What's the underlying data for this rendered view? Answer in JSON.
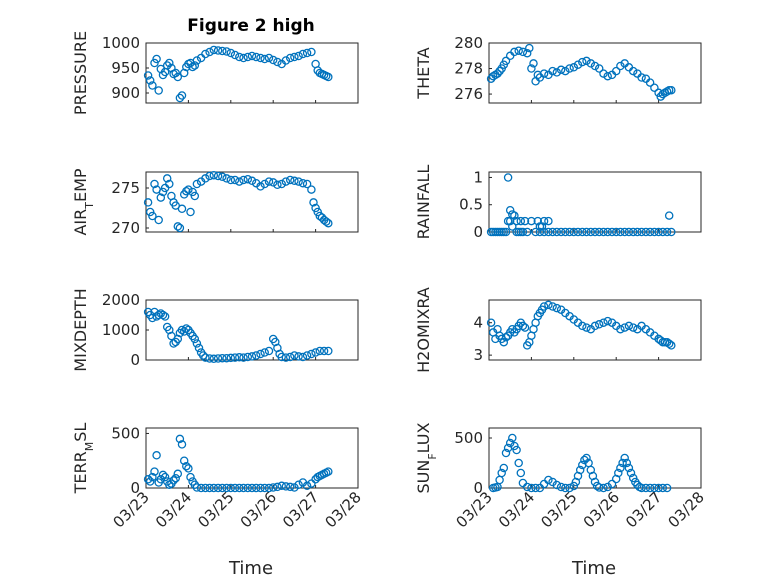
{
  "figure": {
    "title": "Figure 2 high",
    "xlabel": "Time",
    "colors": {
      "series": "#0072BD",
      "axis": "#262626",
      "grid": "#dfdfdf"
    }
  },
  "chart_data": [
    {
      "type": "scatter",
      "ylabel": "PRESSURE",
      "xlim": [
        "03/23",
        "03/28"
      ],
      "ylim": [
        880,
        1000
      ],
      "yticks": [
        900,
        950,
        1000
      ],
      "xticks": [
        "03/23",
        "03/24",
        "03/25",
        "03/26",
        "03/27",
        "03/28"
      ],
      "grid": true,
      "x": [
        0.05,
        0.1,
        0.15,
        0.2,
        0.25,
        0.3,
        0.35,
        0.4,
        0.45,
        0.5,
        0.55,
        0.6,
        0.65,
        0.7,
        0.75,
        0.8,
        0.85,
        0.9,
        0.95,
        1.0,
        1.05,
        1.1,
        1.15,
        1.2,
        1.3,
        1.4,
        1.5,
        1.6,
        1.7,
        1.8,
        1.9,
        2.0,
        2.1,
        2.2,
        2.3,
        2.4,
        2.5,
        2.6,
        2.7,
        2.8,
        2.9,
        3.0,
        3.1,
        3.2,
        3.3,
        3.4,
        3.5,
        3.6,
        3.7,
        3.8,
        3.9,
        4.0,
        4.05,
        4.1,
        4.15,
        4.2,
        4.25,
        4.3
      ],
      "y": [
        935,
        925,
        915,
        960,
        968,
        905,
        948,
        936,
        942,
        955,
        960,
        950,
        938,
        940,
        932,
        890,
        895,
        940,
        952,
        958,
        960,
        952,
        955,
        965,
        970,
        978,
        982,
        986,
        985,
        984,
        983,
        980,
        976,
        972,
        970,
        972,
        974,
        972,
        970,
        968,
        970,
        966,
        962,
        958,
        965,
        970,
        972,
        974,
        978,
        980,
        982,
        958,
        945,
        940,
        938,
        936,
        934,
        932
      ],
      "series_name": ""
    },
    {
      "type": "scatter",
      "ylabel": "THETA",
      "xlim": [
        "03/23",
        "03/28"
      ],
      "ylim": [
        275.3,
        280
      ],
      "yticks": [
        276,
        278,
        280
      ],
      "xticks": [
        "03/23",
        "03/24",
        "03/25",
        "03/26",
        "03/27",
        "03/28"
      ],
      "grid": true,
      "x": [
        0.05,
        0.1,
        0.15,
        0.2,
        0.25,
        0.3,
        0.35,
        0.4,
        0.5,
        0.6,
        0.7,
        0.8,
        0.9,
        0.95,
        1.0,
        1.05,
        1.1,
        1.15,
        1.2,
        1.3,
        1.4,
        1.5,
        1.6,
        1.7,
        1.8,
        1.9,
        2.0,
        2.1,
        2.2,
        2.3,
        2.4,
        2.5,
        2.6,
        2.7,
        2.8,
        2.9,
        3.0,
        3.1,
        3.2,
        3.3,
        3.4,
        3.5,
        3.6,
        3.7,
        3.8,
        3.9,
        4.0,
        4.05,
        4.1,
        4.15,
        4.2,
        4.25,
        4.3
      ],
      "y": [
        277.2,
        277.4,
        277.5,
        277.6,
        277.8,
        278.0,
        278.3,
        278.6,
        279.0,
        279.3,
        279.4,
        279.3,
        279.2,
        279.6,
        278.0,
        278.4,
        277.0,
        277.5,
        277.3,
        277.6,
        277.5,
        277.8,
        277.7,
        277.9,
        277.8,
        278.0,
        278.1,
        278.3,
        278.5,
        278.6,
        278.4,
        278.2,
        278.0,
        277.6,
        277.4,
        277.5,
        277.8,
        278.2,
        278.4,
        278.1,
        277.8,
        277.6,
        277.3,
        277.2,
        276.9,
        276.5,
        276.1,
        275.8,
        276.0,
        276.1,
        276.2,
        276.3,
        276.3
      ],
      "series_name": ""
    },
    {
      "type": "scatter",
      "ylabel": "AIR_TEMP",
      "xlim": [
        "03/23",
        "03/28"
      ],
      "ylim": [
        269.5,
        277
      ],
      "yticks": [
        270,
        275
      ],
      "xticks": [
        "03/23",
        "03/24",
        "03/25",
        "03/26",
        "03/27",
        "03/28"
      ],
      "grid": true,
      "x": [
        0.05,
        0.1,
        0.15,
        0.2,
        0.25,
        0.3,
        0.35,
        0.4,
        0.45,
        0.5,
        0.55,
        0.6,
        0.65,
        0.7,
        0.75,
        0.8,
        0.85,
        0.9,
        0.95,
        1.0,
        1.05,
        1.1,
        1.15,
        1.2,
        1.3,
        1.4,
        1.5,
        1.6,
        1.7,
        1.8,
        1.9,
        2.0,
        2.1,
        2.2,
        2.3,
        2.4,
        2.5,
        2.6,
        2.7,
        2.8,
        2.9,
        3.0,
        3.1,
        3.2,
        3.3,
        3.4,
        3.5,
        3.6,
        3.7,
        3.8,
        3.9,
        3.95,
        4.0,
        4.05,
        4.1,
        4.15,
        4.2,
        4.25,
        4.3
      ],
      "y": [
        273.2,
        272.0,
        271.5,
        275.5,
        274.8,
        271.0,
        273.8,
        274.5,
        275.0,
        276.2,
        275.5,
        274.0,
        273.2,
        272.8,
        270.2,
        270.0,
        272.4,
        274.2,
        274.6,
        274.8,
        272.0,
        274.5,
        274.0,
        275.5,
        275.8,
        276.2,
        276.5,
        276.6,
        276.5,
        276.4,
        276.2,
        276.0,
        276.0,
        275.8,
        276.0,
        276.1,
        275.9,
        275.6,
        275.2,
        275.5,
        275.8,
        275.7,
        275.4,
        275.5,
        275.8,
        276.0,
        275.9,
        275.8,
        275.6,
        275.5,
        274.8,
        273.2,
        272.5,
        272.0,
        271.5,
        271.3,
        271.0,
        270.8,
        270.6
      ],
      "series_name": ""
    },
    {
      "type": "scatter",
      "ylabel": "RAINFALL",
      "xlim": [
        "03/23",
        "03/28"
      ],
      "ylim": [
        0,
        1.1
      ],
      "yticks": [
        0,
        0.5,
        1
      ],
      "xticks": [
        "03/23",
        "03/24",
        "03/25",
        "03/26",
        "03/27",
        "03/28"
      ],
      "grid": true,
      "x": [
        0.05,
        0.1,
        0.15,
        0.2,
        0.25,
        0.3,
        0.35,
        0.4,
        0.45,
        0.5,
        0.55,
        0.6,
        0.65,
        0.7,
        0.75,
        0.8,
        0.9,
        1.0,
        1.1,
        1.2,
        1.3,
        1.4,
        1.5,
        1.6,
        1.7,
        1.8,
        1.9,
        2.0,
        2.1,
        2.2,
        2.3,
        2.4,
        2.5,
        2.6,
        2.7,
        2.8,
        2.9,
        3.0,
        3.1,
        3.2,
        3.3,
        3.4,
        3.5,
        3.6,
        3.7,
        3.8,
        3.9,
        4.0,
        4.1,
        4.2,
        4.25,
        4.3,
        0.45,
        0.55,
        0.65,
        0.5,
        0.75,
        0.85,
        1.15,
        1.3,
        1.4,
        1.2,
        1.25
      ],
      "y": [
        0,
        0,
        0,
        0,
        0,
        0,
        0,
        0,
        1.0,
        0.4,
        0.32,
        0.3,
        0.2,
        0,
        0,
        0,
        0,
        0.2,
        0,
        0,
        0,
        0,
        0,
        0,
        0,
        0,
        0,
        0,
        0,
        0,
        0,
        0,
        0,
        0,
        0,
        0,
        0,
        0,
        0,
        0,
        0,
        0,
        0,
        0,
        0,
        0,
        0,
        0,
        0,
        0,
        0.3,
        0,
        0.2,
        0.1,
        0,
        0.2,
        0.2,
        0.2,
        0.2,
        0.2,
        0.2,
        0.1,
        0.1
      ],
      "series_name": ""
    },
    {
      "type": "scatter",
      "ylabel": "MIXDEPTH",
      "xlim": [
        "03/23",
        "03/28"
      ],
      "ylim": [
        0,
        2000
      ],
      "yticks": [
        0,
        1000,
        2000
      ],
      "xticks": [
        "03/23",
        "03/24",
        "03/25",
        "03/26",
        "03/27",
        "03/28"
      ],
      "grid": true,
      "x": [
        0.05,
        0.1,
        0.15,
        0.2,
        0.25,
        0.3,
        0.35,
        0.4,
        0.45,
        0.5,
        0.55,
        0.6,
        0.65,
        0.7,
        0.75,
        0.8,
        0.85,
        0.9,
        0.95,
        1.0,
        1.05,
        1.1,
        1.15,
        1.2,
        1.25,
        1.3,
        1.35,
        1.4,
        1.5,
        1.6,
        1.7,
        1.8,
        1.9,
        2.0,
        2.1,
        2.2,
        2.3,
        2.4,
        2.5,
        2.6,
        2.7,
        2.8,
        2.9,
        3.0,
        3.05,
        3.1,
        3.15,
        3.2,
        3.3,
        3.4,
        3.5,
        3.6,
        3.7,
        3.8,
        3.9,
        4.0,
        4.1,
        4.2,
        4.3
      ],
      "y": [
        1600,
        1500,
        1400,
        1600,
        1450,
        1500,
        1550,
        1500,
        1450,
        1100,
        1000,
        800,
        550,
        600,
        700,
        900,
        1000,
        950,
        1050,
        1000,
        900,
        800,
        700,
        550,
        400,
        250,
        150,
        80,
        50,
        40,
        50,
        60,
        60,
        70,
        80,
        90,
        80,
        100,
        120,
        150,
        200,
        250,
        300,
        700,
        600,
        400,
        200,
        100,
        80,
        100,
        150,
        120,
        100,
        150,
        200,
        250,
        300,
        300,
        300
      ],
      "series_name": ""
    },
    {
      "type": "scatter",
      "ylabel": "H2OMIXRA",
      "xlim": [
        "03/23",
        "03/28"
      ],
      "ylim": [
        2.85,
        4.7
      ],
      "yticks": [
        3,
        4
      ],
      "xticks": [
        "03/23",
        "03/24",
        "03/25",
        "03/26",
        "03/27",
        "03/28"
      ],
      "grid": true,
      "x": [
        0.05,
        0.1,
        0.15,
        0.2,
        0.25,
        0.3,
        0.35,
        0.4,
        0.45,
        0.5,
        0.55,
        0.6,
        0.65,
        0.7,
        0.75,
        0.8,
        0.85,
        0.9,
        0.95,
        1.0,
        1.05,
        1.1,
        1.15,
        1.2,
        1.25,
        1.3,
        1.4,
        1.5,
        1.6,
        1.7,
        1.8,
        1.9,
        2.0,
        2.1,
        2.2,
        2.3,
        2.4,
        2.5,
        2.6,
        2.7,
        2.8,
        2.9,
        3.0,
        3.1,
        3.2,
        3.3,
        3.4,
        3.5,
        3.6,
        3.7,
        3.8,
        3.9,
        4.0,
        4.05,
        4.1,
        4.15,
        4.2,
        4.25,
        4.3
      ],
      "y": [
        4.0,
        3.7,
        3.5,
        3.8,
        3.6,
        3.5,
        3.4,
        3.55,
        3.6,
        3.7,
        3.8,
        3.7,
        3.8,
        3.9,
        4.0,
        3.9,
        3.85,
        3.3,
        3.4,
        3.6,
        3.8,
        4.0,
        4.2,
        4.3,
        4.4,
        4.5,
        4.55,
        4.5,
        4.45,
        4.4,
        4.3,
        4.2,
        4.1,
        4.0,
        3.9,
        3.85,
        3.8,
        3.9,
        3.95,
        4.0,
        4.05,
        4.0,
        3.9,
        3.8,
        3.85,
        3.9,
        3.85,
        3.8,
        3.9,
        3.8,
        3.7,
        3.6,
        3.5,
        3.45,
        3.4,
        3.4,
        3.4,
        3.35,
        3.3
      ],
      "series_name": ""
    },
    {
      "type": "scatter",
      "ylabel": "TERR_MSL",
      "xlim": [
        "03/23",
        "03/28"
      ],
      "ylim": [
        0,
        550
      ],
      "yticks": [
        0,
        500
      ],
      "xticks": [
        "03/23",
        "03/24",
        "03/25",
        "03/26",
        "03/27",
        "03/28"
      ],
      "grid": true,
      "x": [
        0.05,
        0.1,
        0.15,
        0.2,
        0.25,
        0.3,
        0.35,
        0.4,
        0.45,
        0.5,
        0.55,
        0.6,
        0.65,
        0.7,
        0.75,
        0.8,
        0.85,
        0.9,
        0.95,
        1.0,
        1.05,
        1.1,
        1.15,
        1.2,
        1.3,
        1.4,
        1.5,
        1.6,
        1.7,
        1.8,
        1.9,
        2.0,
        2.1,
        2.2,
        2.3,
        2.4,
        2.5,
        2.6,
        2.7,
        2.8,
        2.9,
        3.0,
        3.1,
        3.2,
        3.3,
        3.4,
        3.5,
        3.6,
        3.7,
        3.8,
        3.9,
        4.0,
        4.05,
        4.1,
        4.15,
        4.2,
        4.25,
        4.3
      ],
      "y": [
        80,
        60,
        100,
        150,
        300,
        50,
        80,
        120,
        100,
        60,
        30,
        40,
        70,
        90,
        130,
        450,
        400,
        250,
        200,
        180,
        100,
        60,
        30,
        5,
        0,
        0,
        0,
        0,
        0,
        0,
        0,
        0,
        0,
        0,
        0,
        0,
        0,
        0,
        0,
        0,
        0,
        5,
        10,
        20,
        15,
        10,
        5,
        30,
        50,
        20,
        40,
        80,
        100,
        110,
        120,
        130,
        140,
        150
      ],
      "series_name": ""
    },
    {
      "type": "scatter",
      "ylabel": "SUN_FLUX",
      "xlim": [
        "03/23",
        "03/28"
      ],
      "ylim": [
        0,
        600
      ],
      "yticks": [
        0,
        500
      ],
      "xticks": [
        "03/23",
        "03/24",
        "03/25",
        "03/26",
        "03/27",
        "03/28"
      ],
      "grid": true,
      "x": [
        0.1,
        0.15,
        0.2,
        0.25,
        0.3,
        0.35,
        0.4,
        0.45,
        0.5,
        0.55,
        0.6,
        0.65,
        0.7,
        0.75,
        0.8,
        0.9,
        1.0,
        1.1,
        1.2,
        1.3,
        1.4,
        1.5,
        1.6,
        1.7,
        1.8,
        1.9,
        2.0,
        2.05,
        2.1,
        2.15,
        2.2,
        2.25,
        2.3,
        2.35,
        2.4,
        2.45,
        2.5,
        2.55,
        2.6,
        2.7,
        2.8,
        2.9,
        3.0,
        3.05,
        3.1,
        3.15,
        3.2,
        3.25,
        3.3,
        3.35,
        3.4,
        3.45,
        3.5,
        3.55,
        3.6,
        3.7,
        3.8,
        3.9,
        4.0,
        4.1,
        4.2
      ],
      "y": [
        0,
        5,
        10,
        80,
        150,
        200,
        350,
        400,
        450,
        500,
        420,
        380,
        250,
        150,
        50,
        10,
        0,
        0,
        0,
        40,
        80,
        60,
        30,
        10,
        0,
        0,
        20,
        60,
        120,
        180,
        230,
        280,
        300,
        250,
        180,
        120,
        60,
        20,
        5,
        0,
        10,
        40,
        90,
        150,
        200,
        250,
        300,
        250,
        200,
        150,
        100,
        60,
        30,
        10,
        0,
        0,
        0,
        0,
        0,
        0,
        0
      ],
      "series_name": ""
    }
  ]
}
